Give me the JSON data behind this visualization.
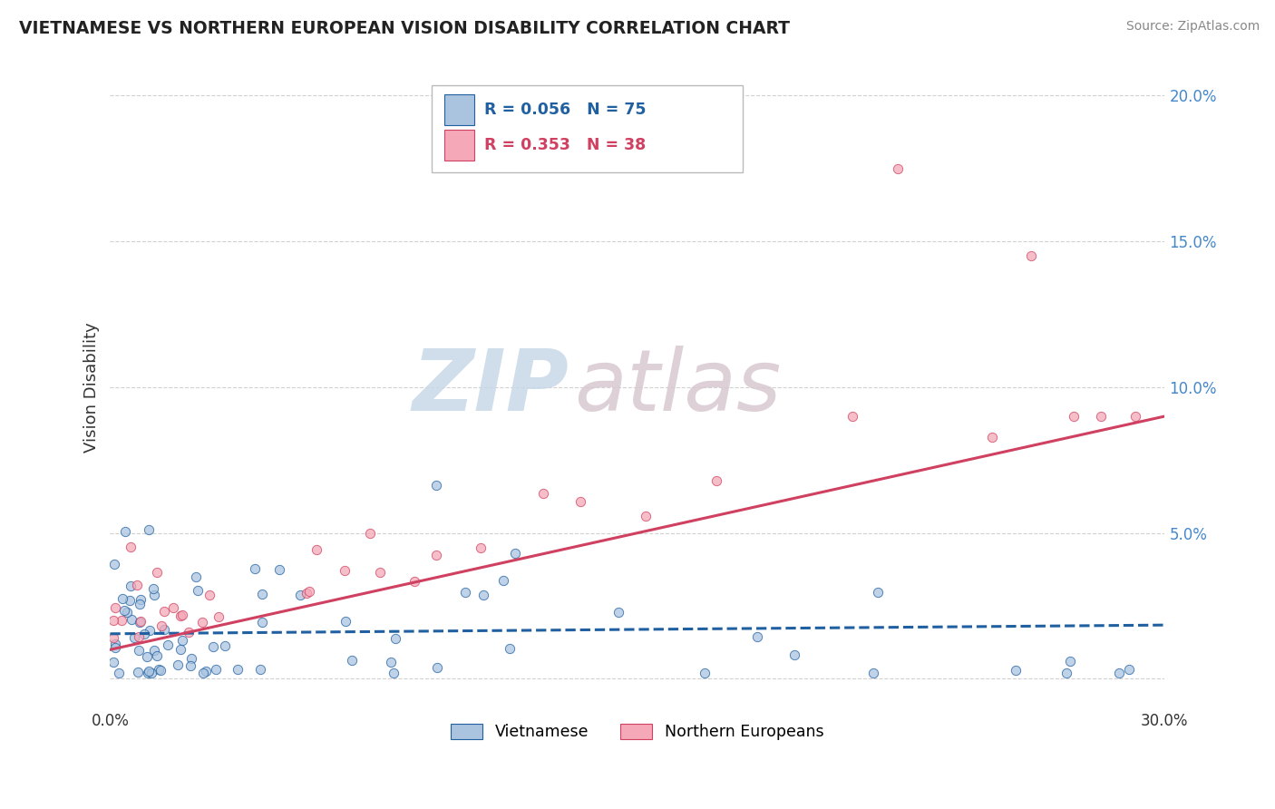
{
  "title": "VIETNAMESE VS NORTHERN EUROPEAN VISION DISABILITY CORRELATION CHART",
  "source": "Source: ZipAtlas.com",
  "ylabel": "Vision Disability",
  "legend_1_label": "Vietnamese",
  "legend_2_label": "Northern Europeans",
  "legend_1_R": "0.056",
  "legend_1_N": "75",
  "legend_2_R": "0.353",
  "legend_2_N": "38",
  "color_viet": "#aac4e0",
  "color_ne": "#f4a8b8",
  "line_color_viet": "#2060a0",
  "line_color_ne": "#d04060",
  "watermark_zip": "ZIP",
  "watermark_atlas": "atlas",
  "xlim": [
    0.0,
    0.3
  ],
  "ylim": [
    -0.01,
    0.21
  ],
  "ytick_vals": [
    0.0,
    0.05,
    0.1,
    0.15,
    0.2
  ],
  "ytick_labels": [
    "",
    "5.0%",
    "10.0%",
    "15.0%",
    "20.0%"
  ],
  "background_color": "#ffffff",
  "grid_color": "#cccccc",
  "title_color": "#222222",
  "source_color": "#888888",
  "ytick_color": "#4488cc"
}
